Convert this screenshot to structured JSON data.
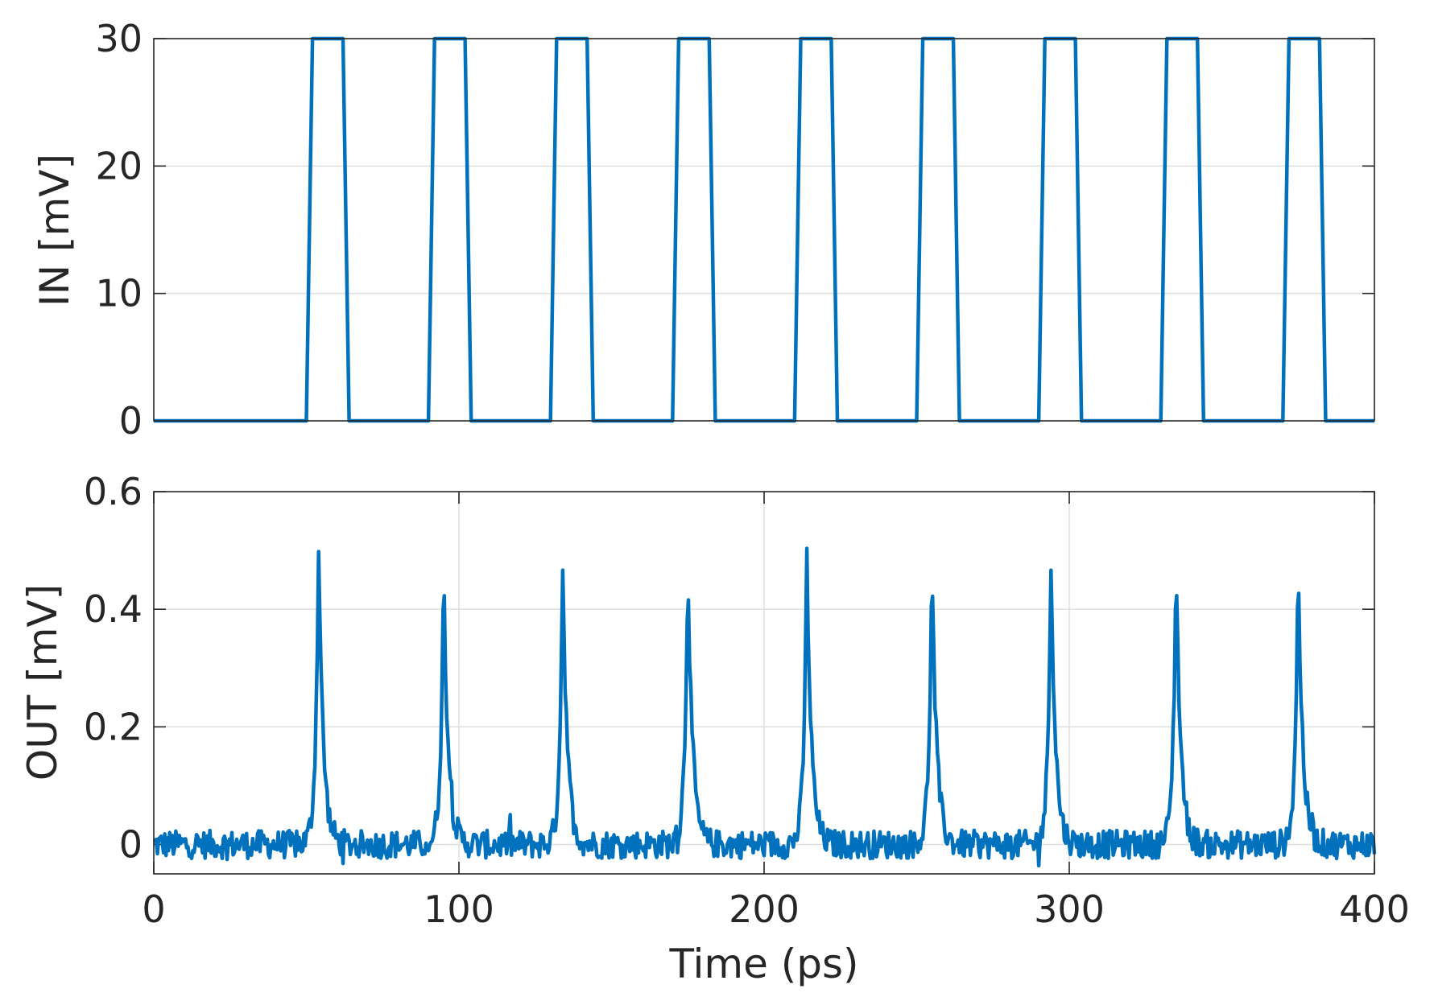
{
  "chart_data": [
    {
      "type": "line",
      "ylabel": "IN [mV]",
      "xlabel": "",
      "xlim": [
        0,
        400
      ],
      "ylim": [
        0,
        30
      ],
      "xticks": [],
      "yticks": [
        0,
        10,
        20,
        30
      ],
      "ytick_labels": [
        "0",
        "10",
        "20",
        "30"
      ],
      "grid": {
        "x": false,
        "y": true
      },
      "line_color": "#0072BD",
      "pulse": {
        "low": 0,
        "high": 30,
        "rise_ps": 2,
        "high_ps": 10,
        "fall_ps": 2
      },
      "pulse_starts": [
        50,
        90,
        130,
        170,
        210,
        250,
        290,
        330,
        370
      ],
      "series": [
        {
          "name": "",
          "x": [
            0,
            50,
            52,
            62,
            64,
            90,
            92,
            102,
            104,
            130,
            132,
            142,
            144,
            170,
            172,
            182,
            184,
            210,
            212,
            222,
            224,
            250,
            252,
            262,
            264,
            290,
            292,
            302,
            304,
            330,
            332,
            342,
            344,
            370,
            372,
            382,
            384,
            400
          ],
          "y": [
            0,
            0,
            30,
            30,
            0,
            0,
            30,
            30,
            0,
            0,
            30,
            30,
            0,
            0,
            30,
            30,
            0,
            0,
            30,
            30,
            0,
            0,
            30,
            30,
            0,
            0,
            30,
            30,
            0,
            0,
            30,
            30,
            0,
            0,
            30,
            30,
            0,
            0
          ]
        }
      ]
    },
    {
      "type": "line",
      "ylabel": "OUT [mV]",
      "xlabel": "Time (ps)",
      "xlim": [
        0,
        400
      ],
      "ylim": [
        -0.05,
        0.6
      ],
      "xticks": [
        0,
        100,
        200,
        300,
        400
      ],
      "xtick_labels": [
        "0",
        "100",
        "200",
        "300",
        "400"
      ],
      "yticks": [
        0,
        0.2,
        0.4,
        0.6
      ],
      "ytick_labels": [
        "0",
        "0.2",
        "0.4",
        "0.6"
      ],
      "grid": {
        "x": true,
        "y": true
      },
      "line_color": "#0072BD",
      "baseline": 0,
      "noise_amplitude": 0.03,
      "peaks": [
        {
          "x": 54,
          "y": 0.51
        },
        {
          "x": 95,
          "y": 0.47
        },
        {
          "x": 134,
          "y": 0.48
        },
        {
          "x": 175,
          "y": 0.49
        },
        {
          "x": 214,
          "y": 0.49
        },
        {
          "x": 255,
          "y": 0.48
        },
        {
          "x": 294,
          "y": 0.49
        },
        {
          "x": 335,
          "y": 0.49
        },
        {
          "x": 375,
          "y": 0.48
        }
      ]
    }
  ]
}
